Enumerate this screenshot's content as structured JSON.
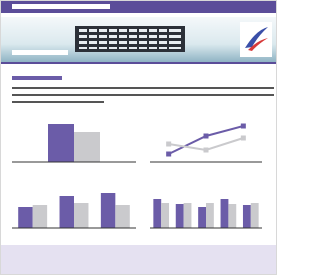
{
  "charts": [
    {
      "type": "bar",
      "ylim": [
        0,
        40
      ],
      "series": [
        {
          "color": "#6b5ca8",
          "values": [
            38
          ]
        },
        {
          "color": "#cacacd",
          "values": [
            30
          ]
        }
      ]
    },
    {
      "type": "line",
      "ylim": [
        0,
        40
      ],
      "series": [
        {
          "color": "#6b5ca8",
          "values": [
            8,
            26,
            36
          ]
        },
        {
          "color": "#cacacd",
          "values": [
            18,
            12,
            24
          ]
        }
      ]
    },
    {
      "type": "bar",
      "ylim": [
        0,
        40
      ],
      "series": [
        {
          "color": "#6b5ca8",
          "values": [
            21,
            32,
            35
          ]
        },
        {
          "color": "#cacacd",
          "values": [
            23,
            25,
            23
          ]
        }
      ]
    },
    {
      "type": "bar",
      "ylim": [
        0,
        40
      ],
      "series": [
        {
          "color": "#6b5ca8",
          "values": [
            29,
            24,
            21,
            29,
            23
          ]
        },
        {
          "color": "#cacacd",
          "values": [
            25,
            25,
            25,
            24,
            25
          ]
        }
      ]
    }
  ]
}
